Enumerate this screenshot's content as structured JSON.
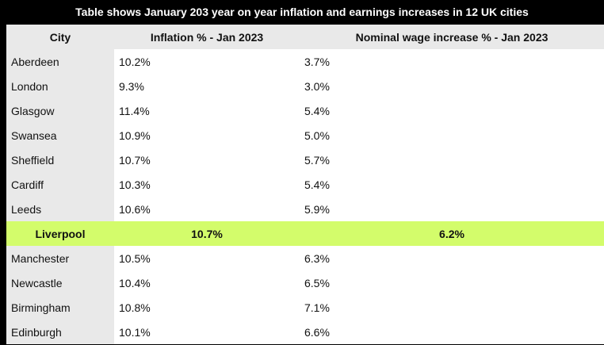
{
  "title": "Table shows January 203 year on year inflation and earnings increases in 12 UK cities",
  "headers": [
    "City",
    "Inflation % - Jan 2023",
    "Nominal wage increase % - Jan 2023"
  ],
  "highlight_color": "#d3fc6b",
  "rows": [
    {
      "city": "Aberdeen",
      "inflation": "10.2%",
      "wage": "3.7%"
    },
    {
      "city": "London",
      "inflation": "9.3%",
      "wage": "3.0%"
    },
    {
      "city": "Glasgow",
      "inflation": "11.4%",
      "wage": "5.4%"
    },
    {
      "city": "Swansea",
      "inflation": "10.9%",
      "wage": "5.0%"
    },
    {
      "city": "Sheffield",
      "inflation": "10.7%",
      "wage": "5.7%"
    },
    {
      "city": "Cardiff",
      "inflation": "10.3%",
      "wage": "5.4%"
    },
    {
      "city": "Leeds",
      "inflation": "10.6%",
      "wage": "5.9%"
    },
    {
      "city": "Liverpool",
      "inflation": "10.7%",
      "wage": "6.2%",
      "highlighted": true
    },
    {
      "city": "Manchester",
      "inflation": "10.5%",
      "wage": "6.3%"
    },
    {
      "city": "Newcastle",
      "inflation": "10.4%",
      "wage": "6.5%"
    },
    {
      "city": "Birmingham",
      "inflation": "10.8%",
      "wage": "7.1%"
    },
    {
      "city": "Edinburgh",
      "inflation": "10.1%",
      "wage": "6.6%"
    }
  ]
}
